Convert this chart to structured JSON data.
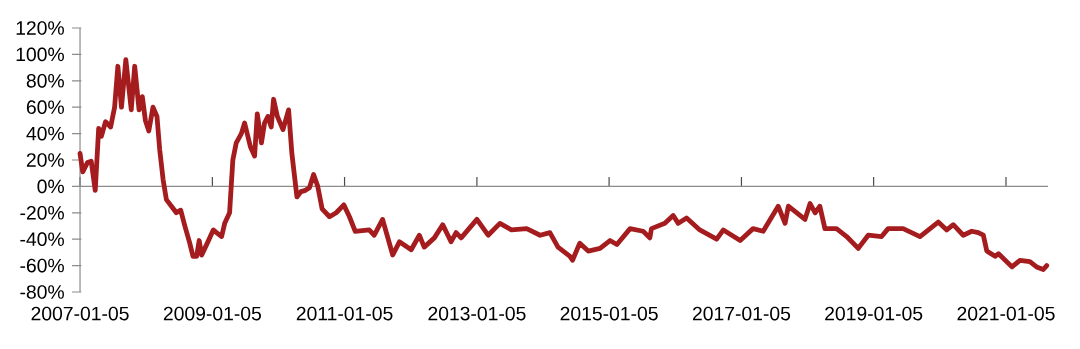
{
  "chart_data": {
    "type": "line",
    "color": "#a51c1e",
    "x": [
      "2007-01-05",
      "2007-01-20",
      "2007-02-15",
      "2007-03-08",
      "2007-03-30",
      "2007-04-18",
      "2007-05-03",
      "2007-05-26",
      "2007-06-23",
      "2007-07-15",
      "2007-08-02",
      "2007-08-22",
      "2007-09-15",
      "2007-10-15",
      "2007-11-03",
      "2007-11-27",
      "2007-12-15",
      "2008-01-01",
      "2008-01-20",
      "2008-02-12",
      "2008-03-05",
      "2008-03-20",
      "2008-04-08",
      "2008-04-26",
      "2008-05-24",
      "2008-06-20",
      "2008-07-14",
      "2008-08-06",
      "2008-09-02",
      "2008-09-20",
      "2008-10-10",
      "2008-10-24",
      "2008-11-07",
      "2008-12-08",
      "2009-01-10",
      "2009-01-28",
      "2009-02-25",
      "2009-03-14",
      "2009-04-10",
      "2009-04-28",
      "2009-05-17",
      "2009-06-14",
      "2009-07-02",
      "2009-08-03",
      "2009-08-26",
      "2009-09-10",
      "2009-10-03",
      "2009-10-20",
      "2009-11-08",
      "2009-11-26",
      "2009-12-09",
      "2009-12-30",
      "2010-01-30",
      "2010-03-02",
      "2010-03-20",
      "2010-04-17",
      "2010-05-09",
      "2010-06-03",
      "2010-06-25",
      "2010-07-18",
      "2010-08-10",
      "2010-09-03",
      "2010-10-14",
      "2010-11-20",
      "2011-01-01",
      "2011-02-01",
      "2011-03-05",
      "2011-05-21",
      "2011-06-18",
      "2011-08-03",
      "2011-09-28",
      "2011-11-04",
      "2012-01-08",
      "2012-02-22",
      "2012-03-20",
      "2012-05-15",
      "2012-06-30",
      "2012-08-15",
      "2012-09-12",
      "2012-10-10",
      "2013-01-05",
      "2013-03-08",
      "2013-05-12",
      "2013-07-15",
      "2013-10-07",
      "2013-12-20",
      "2014-02-12",
      "2014-03-29",
      "2014-06-03",
      "2014-06-17",
      "2014-07-27",
      "2014-09-12",
      "2014-11-16",
      "2015-01-10",
      "2015-02-17",
      "2015-05-01",
      "2015-07-12",
      "2015-08-18",
      "2015-08-27",
      "2015-11-09",
      "2015-12-25",
      "2016-01-22",
      "2016-03-08",
      "2016-05-20",
      "2016-08-21",
      "2016-09-27",
      "2016-12-29",
      "2017-03-10",
      "2017-05-05",
      "2017-07-27",
      "2017-09-03",
      "2017-09-21",
      "2017-12-22",
      "2018-01-19",
      "2018-02-16",
      "2018-03-14",
      "2018-04-11",
      "2018-06-14",
      "2018-08-09",
      "2018-10-12",
      "2018-12-06",
      "2019-02-18",
      "2019-03-26",
      "2019-06-17",
      "2019-09-18",
      "2019-12-28",
      "2020-02-13",
      "2020-03-20",
      "2020-05-14",
      "2020-06-30",
      "2020-08-05",
      "2020-09-02",
      "2020-09-21",
      "2020-11-06",
      "2020-11-25",
      "2021-02-07",
      "2021-03-23",
      "2021-05-17",
      "2021-06-23",
      "2021-07-30",
      "2021-08-18"
    ],
    "values": [
      25,
      11,
      18,
      19,
      -3,
      44,
      38,
      49,
      45,
      60,
      91,
      60,
      96,
      58,
      91,
      58,
      68,
      50,
      42,
      60,
      53,
      28,
      5,
      -10,
      -15,
      -20,
      -18,
      -30,
      -43,
      -53,
      -53,
      -41,
      -52,
      -43,
      -33,
      -35,
      -38,
      -28,
      -20,
      20,
      33,
      40,
      48,
      30,
      23,
      55,
      33,
      48,
      53,
      45,
      66,
      53,
      43,
      58,
      25,
      -8,
      -4,
      -3,
      -1,
      9,
      0,
      -17,
      -23,
      -20,
      -14,
      -23,
      -34,
      -33,
      -37,
      -25,
      -52,
      -42,
      -48,
      -37,
      -46,
      -39,
      -29,
      -42,
      -35,
      -39,
      -25,
      -37,
      -28,
      -33,
      -32,
      -37,
      -35,
      -46,
      -53,
      -56,
      -43,
      -49,
      -47,
      -41,
      -44,
      -32,
      -34,
      -39,
      -32,
      -28,
      -22,
      -28,
      -24,
      -33,
      -40,
      -33,
      -41,
      -32,
      -34,
      -15,
      -28,
      -15,
      -25,
      -13,
      -20,
      -15,
      -32,
      -32,
      -38,
      -47,
      -37,
      -38,
      -32,
      -32,
      -38,
      -27,
      -33,
      -29,
      -37,
      -34,
      -35,
      -37,
      -49,
      -53,
      -51,
      -61,
      -56,
      -57,
      -61,
      -63,
      -60
    ],
    "xlim": [
      "2007-01-05",
      "2021-08-25"
    ],
    "xticks": [
      "2007-01-05",
      "2009-01-05",
      "2011-01-05",
      "2013-01-05",
      "2015-01-05",
      "2017-01-05",
      "2019-01-05",
      "2021-01-05"
    ],
    "ylim": [
      -80,
      120
    ],
    "yticks": [
      {
        "value": -80,
        "label": "-80%"
      },
      {
        "value": -60,
        "label": "-60%"
      },
      {
        "value": -40,
        "label": "-40%"
      },
      {
        "value": -20,
        "label": "-20%"
      },
      {
        "value": 0,
        "label": "0%"
      },
      {
        "value": 20,
        "label": "20%"
      },
      {
        "value": 40,
        "label": "40%"
      },
      {
        "value": 60,
        "label": "60%"
      },
      {
        "value": 80,
        "label": "80%"
      },
      {
        "value": 100,
        "label": "100%"
      },
      {
        "value": 120,
        "label": "120%"
      }
    ]
  }
}
